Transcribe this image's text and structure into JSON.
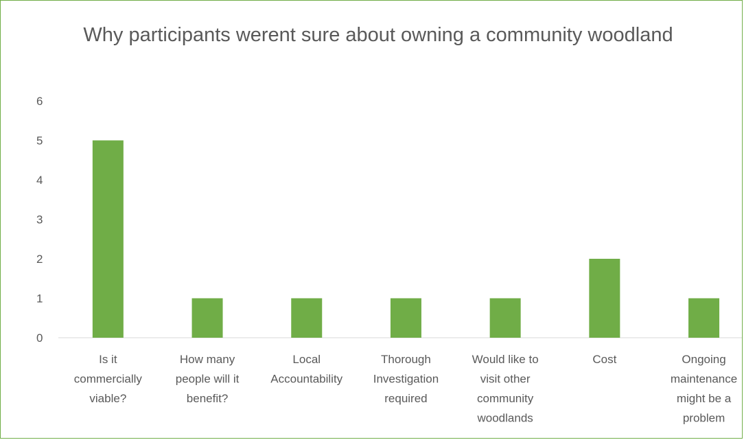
{
  "chart_data": {
    "type": "bar",
    "title": "Why participants werent sure about owning a community woodland",
    "categories": [
      "Is it commercially viable?",
      "How many people will it benefit?",
      "Local Accountability",
      "Thorough Investigation required",
      "Would like to visit other community woodlands",
      "Cost",
      "Ongoing maintenance might be a problem"
    ],
    "category_lines": [
      [
        "Is it",
        "commercially",
        "viable?"
      ],
      [
        "How many",
        "people will it",
        "benefit?"
      ],
      [
        "Local",
        "Accountability"
      ],
      [
        "Thorough",
        "Investigation",
        "required"
      ],
      [
        "Would like to",
        "visit other",
        "community",
        "woodlands"
      ],
      [
        "Cost"
      ],
      [
        "Ongoing",
        "maintenance",
        "might be a",
        "problem"
      ]
    ],
    "values": [
      5,
      1,
      1,
      1,
      1,
      2,
      1
    ],
    "yticks": [
      "0",
      "1",
      "2",
      "3",
      "4",
      "5",
      "6"
    ],
    "ylim": [
      0,
      6
    ],
    "xlabel": "",
    "ylabel": "",
    "grid": false,
    "legend": "none",
    "bar_color": "#70AD47",
    "axis_color": "#D9D9D9",
    "text_color": "#595959"
  }
}
